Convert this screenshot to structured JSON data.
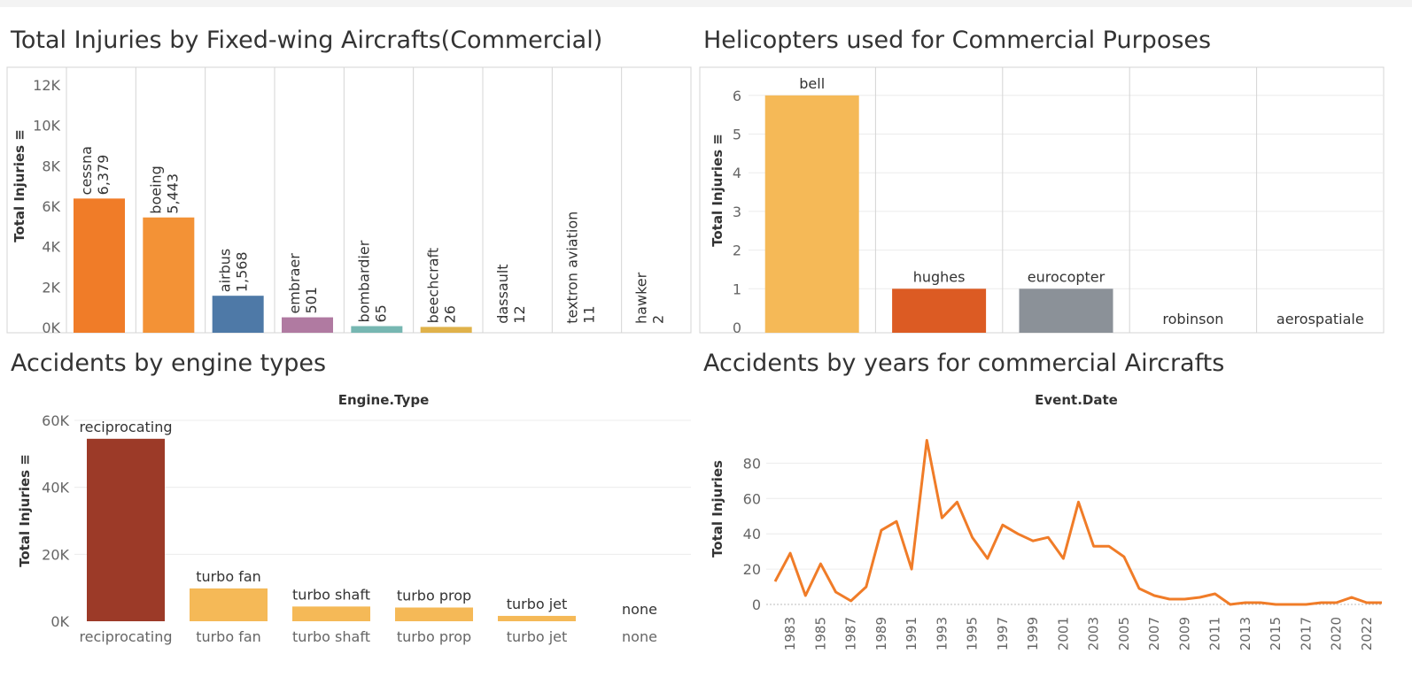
{
  "colors": {
    "cessna": "#f07c28",
    "boeing": "#f39236",
    "airbus": "#4e79a7",
    "embraer": "#b07aa1",
    "bombardier": "#76b7b2",
    "beechcraft": "#e0b24a",
    "bell": "#f5b957",
    "hughes": "#dc5b23",
    "eurocopter": "#8b9198",
    "reciprocating": "#9c3a28",
    "turbo": "#f5b957",
    "line": "#f07c28",
    "axis_text": "#666666",
    "grid": "#ececec"
  },
  "charts": {
    "fixed_wing": {
      "title": "Total Injuries by Fixed-wing Aircrafts(Commercial)",
      "chart_data": {
        "type": "bar",
        "title": "Total Injuries by Fixed-wing Aircrafts(Commercial)",
        "ylabel": "Total Injuries",
        "ylim": [
          0,
          12000
        ],
        "yticks": [
          "0K",
          "2K",
          "4K",
          "6K",
          "8K",
          "10K",
          "12K"
        ],
        "categories": [
          "cessna",
          "boeing",
          "airbus",
          "embraer",
          "bombardier",
          "beechcraft",
          "dassault",
          "textron aviation",
          "hawker"
        ],
        "values": [
          6379,
          5443,
          1568,
          501,
          65,
          26,
          12,
          11,
          2
        ],
        "value_labels": [
          "6,379",
          "5,443",
          "1,568",
          "501",
          "65",
          "26",
          "12",
          "11",
          "2"
        ]
      }
    },
    "helicopters": {
      "title": "Helicopters used for Commercial Purposes",
      "chart_data": {
        "type": "bar",
        "title": "Helicopters used for Commercial Purposes",
        "ylabel": "Total Injuries",
        "ylim": [
          0,
          6.5
        ],
        "yticks": [
          "0",
          "1",
          "2",
          "3",
          "4",
          "5",
          "6"
        ],
        "categories": [
          "bell",
          "hughes",
          "eurocopter",
          "robinson",
          "aerospatiale"
        ],
        "values": [
          6,
          1,
          1,
          0,
          0
        ]
      }
    },
    "engine_types": {
      "title": "Accidents by engine types",
      "chart_data": {
        "type": "bar",
        "title": "Accidents by engine types",
        "header": "Engine.Type",
        "ylabel": "Total Injuries",
        "ylim": [
          0,
          60000
        ],
        "yticks": [
          "0K",
          "20K",
          "40K",
          "60K"
        ],
        "categories": [
          "reciprocating",
          "turbo fan",
          "turbo shaft",
          "turbo prop",
          "turbo jet",
          "none"
        ],
        "values": [
          54500,
          9800,
          4400,
          4100,
          1600,
          0
        ]
      }
    },
    "years": {
      "title": "Accidents by years for commercial Aircrafts",
      "chart_data": {
        "type": "line",
        "title": "Accidents by years for commercial Aircrafts",
        "header": "Event.Date",
        "ylabel": "Total Injuries",
        "ylim": [
          0,
          95
        ],
        "yticks": [
          "0",
          "20",
          "40",
          "60",
          "80"
        ],
        "xtick_labels": [
          "1983",
          "1985",
          "1987",
          "1989",
          "1991",
          "1993",
          "1995",
          "1997",
          "1999",
          "2001",
          "2003",
          "2005",
          "2007",
          "2009",
          "2011",
          "2013",
          "2015",
          "2017",
          "2020",
          "2022"
        ],
        "x": [
          "1982",
          "1983",
          "1984",
          "1985",
          "1986",
          "1987",
          "1988",
          "1989",
          "1990",
          "1991",
          "1992",
          "1993",
          "1994",
          "1995",
          "1996",
          "1997",
          "1998",
          "1999",
          "2000",
          "2001",
          "2002",
          "2003",
          "2004",
          "2005",
          "2006",
          "2007",
          "2008",
          "2009",
          "2010",
          "2011",
          "2012",
          "2013",
          "2014",
          "2015",
          "2016",
          "2017",
          "2019",
          "2020",
          "2021",
          "2022",
          "2023"
        ],
        "values": [
          13,
          29,
          5,
          23,
          7,
          2,
          10,
          42,
          47,
          20,
          93,
          49,
          58,
          38,
          26,
          45,
          40,
          36,
          38,
          26,
          58,
          33,
          33,
          27,
          9,
          5,
          3,
          3,
          4,
          6,
          0,
          1,
          1,
          0,
          0,
          0,
          1,
          1,
          4,
          1,
          1
        ]
      }
    }
  }
}
